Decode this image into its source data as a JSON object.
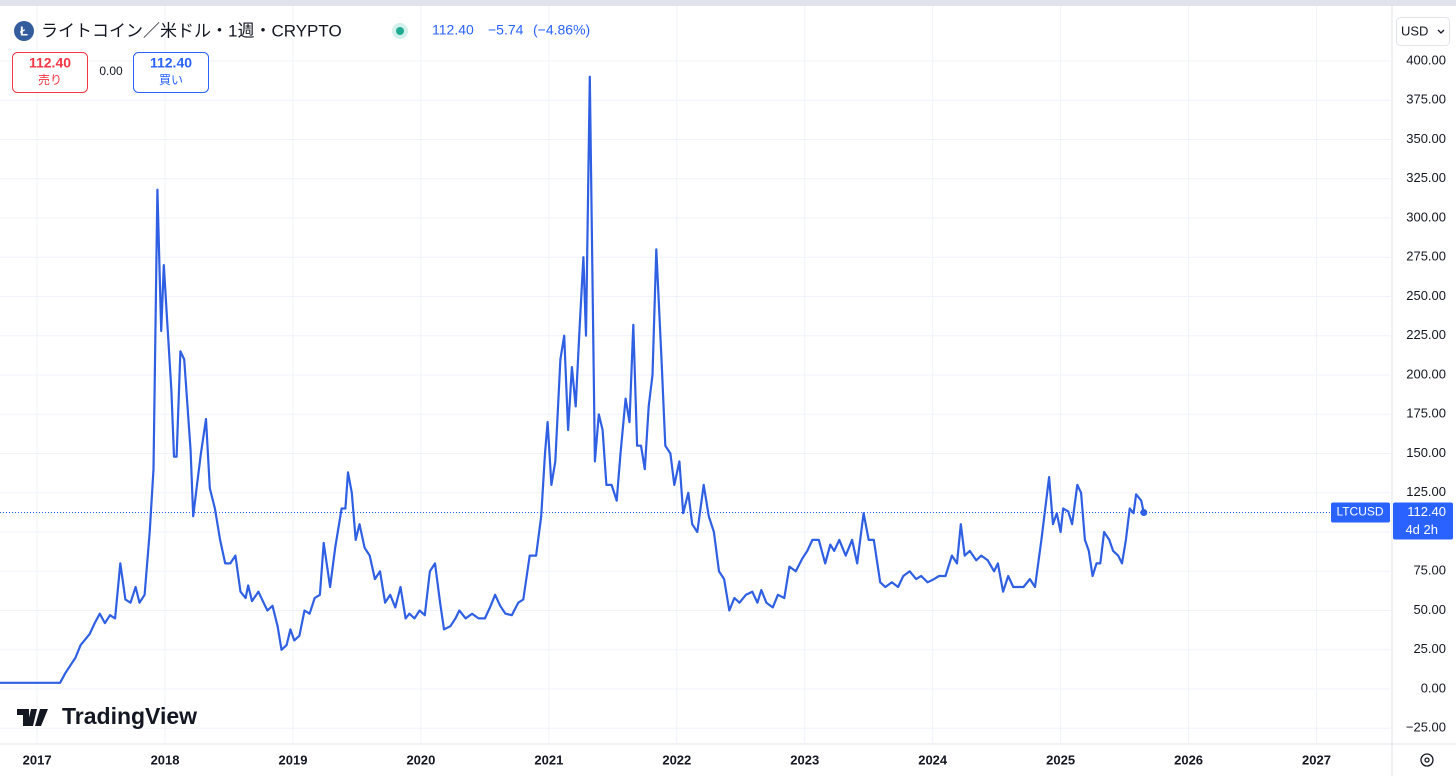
{
  "header": {
    "title": "ライトコイン／米ドル・1週・CRYPTO",
    "price": "112.40",
    "change": "−5.74",
    "change_pct": "(−4.86%)"
  },
  "trade": {
    "sell_price": "112.40",
    "sell_label": "売り",
    "spread": "0.00",
    "buy_price": "112.40",
    "buy_label": "買い"
  },
  "currency": "USD",
  "brand": "TradingView",
  "chart_data": {
    "type": "line",
    "symbol": "LTCUSD",
    "countdown": "4d 2h",
    "last_price": {
      "value": 112.4,
      "label": "112.40"
    },
    "xlim": [
      2016.71,
      2027.59
    ],
    "ylim": [
      -35,
      435
    ],
    "xticks": [
      2017,
      2018,
      2019,
      2020,
      2021,
      2022,
      2023,
      2024,
      2025,
      2026,
      2027
    ],
    "yticks": [
      {
        "value": -25,
        "label": "−25.00"
      },
      {
        "value": 0,
        "label": "0.00"
      },
      {
        "value": 25,
        "label": "25.00"
      },
      {
        "value": 50,
        "label": "50.00"
      },
      {
        "value": 75,
        "label": "75.00"
      },
      {
        "value": 100,
        "label": "100.00"
      },
      {
        "value": 125,
        "label": "125.00"
      },
      {
        "value": 150,
        "label": "150.00"
      },
      {
        "value": 175,
        "label": "175.00"
      },
      {
        "value": 200,
        "label": "200.00"
      },
      {
        "value": 225,
        "label": "225.00"
      },
      {
        "value": 250,
        "label": "250.00"
      },
      {
        "value": 275,
        "label": "275.00"
      },
      {
        "value": 300,
        "label": "300.00"
      },
      {
        "value": 325,
        "label": "325.00"
      },
      {
        "value": 350,
        "label": "350.00"
      },
      {
        "value": 375,
        "label": "375.00"
      },
      {
        "value": 400,
        "label": "400.00"
      }
    ],
    "grid": true,
    "series": [
      {
        "name": "LTCUSD",
        "color": "#2f5fe3",
        "x": [
          2016.71,
          2017.18,
          2017.22,
          2017.3,
          2017.34,
          2017.41,
          2017.45,
          2017.49,
          2017.53,
          2017.57,
          2017.61,
          2017.65,
          2017.69,
          2017.73,
          2017.77,
          2017.8,
          2017.84,
          2017.88,
          2017.91,
          2017.94,
          2017.97,
          2017.99,
          2018.02,
          2018.05,
          2018.07,
          2018.09,
          2018.12,
          2018.15,
          2018.2,
          2018.22,
          2018.25,
          2018.28,
          2018.32,
          2018.35,
          2018.39,
          2018.43,
          2018.47,
          2018.51,
          2018.55,
          2018.59,
          2018.63,
          2018.65,
          2018.68,
          2018.73,
          2018.77,
          2018.8,
          2018.84,
          2018.88,
          2018.91,
          2018.95,
          2018.98,
          2019.01,
          2019.05,
          2019.09,
          2019.13,
          2019.17,
          2019.21,
          2019.24,
          2019.29,
          2019.33,
          2019.38,
          2019.41,
          2019.43,
          2019.46,
          2019.49,
          2019.52,
          2019.56,
          2019.6,
          2019.64,
          2019.68,
          2019.72,
          2019.76,
          2019.8,
          2019.84,
          2019.88,
          2019.91,
          2019.95,
          2019.99,
          2020.03,
          2020.07,
          2020.11,
          2020.15,
          2020.18,
          2020.23,
          2020.27,
          2020.3,
          2020.35,
          2020.4,
          2020.45,
          2020.5,
          2020.54,
          2020.58,
          2020.62,
          2020.66,
          2020.71,
          2020.76,
          2020.8,
          2020.85,
          2020.9,
          2020.94,
          2020.97,
          2020.99,
          2021.02,
          2021.05,
          2021.09,
          2021.12,
          2021.15,
          2021.18,
          2021.21,
          2021.24,
          2021.27,
          2021.29,
          2021.32,
          2021.36,
          2021.39,
          2021.42,
          2021.45,
          2021.49,
          2021.53,
          2021.56,
          2021.6,
          2021.63,
          2021.66,
          2021.69,
          2021.72,
          2021.75,
          2021.78,
          2021.81,
          2021.84,
          2021.88,
          2021.91,
          2021.95,
          2021.98,
          2022.02,
          2022.05,
          2022.09,
          2022.12,
          2022.16,
          2022.21,
          2022.25,
          2022.29,
          2022.33,
          2022.37,
          2022.41,
          2022.45,
          2022.49,
          2022.54,
          2022.59,
          2022.63,
          2022.66,
          2022.7,
          2022.75,
          2022.79,
          2022.84,
          2022.88,
          2022.93,
          2022.98,
          2023.02,
          2023.06,
          2023.11,
          2023.16,
          2023.2,
          2023.23,
          2023.27,
          2023.32,
          2023.37,
          2023.41,
          2023.46,
          2023.5,
          2023.54,
          2023.59,
          2023.63,
          2023.68,
          2023.73,
          2023.77,
          2023.82,
          2023.87,
          2023.91,
          2023.96,
          2024.01,
          2024.05,
          2024.1,
          2024.15,
          2024.19,
          2024.22,
          2024.25,
          2024.29,
          2024.34,
          2024.38,
          2024.43,
          2024.48,
          2024.51,
          2024.55,
          2024.59,
          2024.63,
          2024.66,
          2024.71,
          2024.76,
          2024.8,
          2024.85,
          2024.91,
          2024.94,
          2024.97,
          2025.0,
          2025.02,
          2025.06,
          2025.09,
          2025.13,
          2025.16,
          2025.19,
          2025.22,
          2025.25,
          2025.28,
          2025.31,
          2025.34,
          2025.38,
          2025.41,
          2025.45,
          2025.48,
          2025.51,
          2025.54,
          2025.57,
          2025.59,
          2025.63,
          2025.65
        ],
        "values": [
          4,
          4,
          10,
          20,
          28,
          35,
          42,
          48,
          42,
          47,
          45,
          80,
          57,
          55,
          65,
          55,
          60,
          100,
          140,
          318,
          228,
          270,
          230,
          190,
          148,
          148,
          215,
          210,
          152,
          110,
          130,
          150,
          172,
          128,
          115,
          95,
          80,
          80,
          85,
          62,
          58,
          66,
          56,
          62,
          55,
          50,
          53,
          40,
          25,
          28,
          38,
          31,
          34,
          50,
          48,
          58,
          60,
          93,
          65,
          90,
          115,
          115,
          138,
          125,
          95,
          105,
          90,
          85,
          70,
          75,
          55,
          60,
          52,
          65,
          45,
          48,
          45,
          50,
          47,
          75,
          80,
          55,
          38,
          40,
          45,
          50,
          45,
          48,
          45,
          45,
          52,
          60,
          53,
          48,
          47,
          55,
          57,
          85,
          85,
          110,
          150,
          170,
          130,
          145,
          210,
          225,
          165,
          205,
          180,
          230,
          275,
          225,
          390,
          145,
          175,
          165,
          130,
          130,
          120,
          150,
          185,
          170,
          232,
          155,
          155,
          140,
          180,
          200,
          280,
          210,
          155,
          150,
          130,
          145,
          112,
          125,
          105,
          100,
          130,
          110,
          100,
          75,
          70,
          50,
          58,
          55,
          60,
          62,
          55,
          63,
          55,
          52,
          60,
          58,
          78,
          75,
          83,
          88,
          95,
          95,
          80,
          92,
          88,
          95,
          85,
          95,
          80,
          112,
          95,
          95,
          68,
          65,
          68,
          65,
          72,
          75,
          70,
          72,
          68,
          70,
          72,
          72,
          85,
          80,
          105,
          85,
          88,
          82,
          85,
          82,
          75,
          80,
          62,
          72,
          65,
          65,
          65,
          70,
          65,
          95,
          135,
          105,
          112,
          100,
          115,
          113,
          105,
          130,
          125,
          95,
          88,
          72,
          80,
          80,
          100,
          95,
          88,
          85,
          80,
          95,
          115,
          112,
          124,
          120,
          112.4
        ]
      }
    ]
  }
}
